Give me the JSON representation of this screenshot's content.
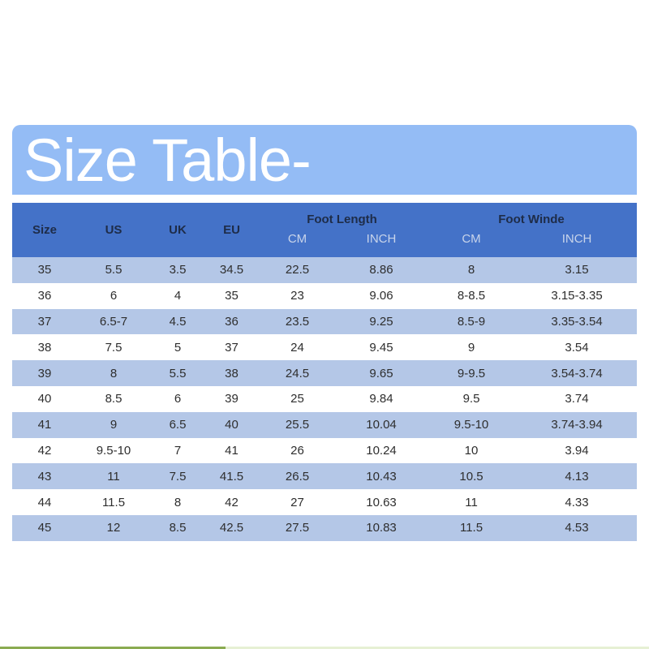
{
  "title": "Size Table-",
  "headers": {
    "size": "Size",
    "us": "US",
    "uk": "UK",
    "eu": "EU",
    "foot_length": "Foot Length",
    "foot_width": "Foot Winde",
    "cm": "CM",
    "inch": "INCH"
  },
  "rows": [
    [
      "35",
      "5.5",
      "3.5",
      "34.5",
      "22.5",
      "8.86",
      "8",
      "3.15"
    ],
    [
      "36",
      "6",
      "4",
      "35",
      "23",
      "9.06",
      "8-8.5",
      "3.15-3.35"
    ],
    [
      "37",
      "6.5-7",
      "4.5",
      "36",
      "23.5",
      "9.25",
      "8.5-9",
      "3.35-3.54"
    ],
    [
      "38",
      "7.5",
      "5",
      "37",
      "24",
      "9.45",
      "9",
      "3.54"
    ],
    [
      "39",
      "8",
      "5.5",
      "38",
      "24.5",
      "9.65",
      "9-9.5",
      "3.54-3.74"
    ],
    [
      "40",
      "8.5",
      "6",
      "39",
      "25",
      "9.84",
      "9.5",
      "3.74"
    ],
    [
      "41",
      "9",
      "6.5",
      "40",
      "25.5",
      "10.04",
      "9.5-10",
      "3.74-3.94"
    ],
    [
      "42",
      "9.5-10",
      "7",
      "41",
      "26",
      "10.24",
      "10",
      "3.94"
    ],
    [
      "43",
      "11",
      "7.5",
      "41.5",
      "26.5",
      "10.43",
      "10.5",
      "4.13"
    ],
    [
      "44",
      "11.5",
      "8",
      "42",
      "27",
      "10.63",
      "11",
      "4.33"
    ],
    [
      "45",
      "12",
      "8.5",
      "42.5",
      "27.5",
      "10.83",
      "11.5",
      "4.53"
    ]
  ],
  "colors": {
    "banner": "#94bcf5",
    "header": "#4472c8",
    "stripe": "#b4c7e7"
  }
}
